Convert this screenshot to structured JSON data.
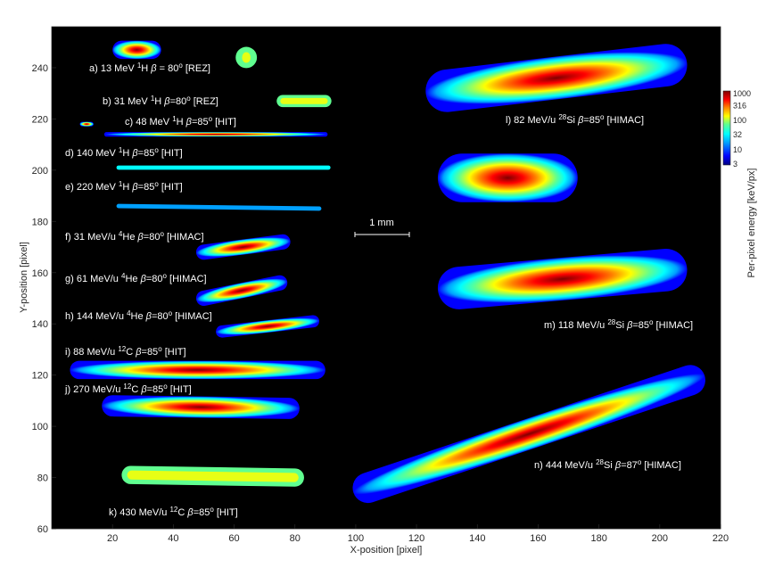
{
  "chart_data": {
    "type": "heatmap",
    "xlabel": "X-position [pixel]",
    "ylabel": "Y-position [pixel]",
    "xlim": [
      0,
      220
    ],
    "ylim": [
      60,
      256
    ],
    "xticks": [
      "20",
      "40",
      "60",
      "80",
      "100",
      "120",
      "140",
      "160",
      "180",
      "200",
      "220"
    ],
    "yticks": [
      "60",
      "80",
      "100",
      "120",
      "140",
      "160",
      "180",
      "200",
      "220",
      "240"
    ],
    "grid": false,
    "colorbar": {
      "label": "Per-pixel energy [keV/px]",
      "scale": "log",
      "range": [
        3,
        1000
      ],
      "ticks": [
        "1000",
        "316",
        "100",
        "32",
        "10",
        "3"
      ],
      "colormap": [
        "#00007f",
        "#0000ff",
        "#00a0ff",
        "#00ffff",
        "#60ff90",
        "#ffff00",
        "#ff8000",
        "#ff0000",
        "#7f0000"
      ]
    },
    "scale_bar": {
      "label": "1 mm",
      "length_px": 18
    },
    "series": [
      {
        "label": {
          "pre": "a) 13 MeV ",
          "iso": "1",
          "el": "H ",
          "beta": " = 80",
          "post": " [REZ]"
        }
      },
      {
        "label": {
          "pre": "b) 31 MeV ",
          "iso": "1",
          "el": "H ",
          "beta": "=80",
          "post": " [REZ]"
        }
      },
      {
        "label": {
          "pre": "c) 48 MeV ",
          "iso": "1",
          "el": "H ",
          "beta": "=85",
          "post": " [HIT]"
        }
      },
      {
        "label": {
          "pre": "d) 140 MeV ",
          "iso": "1",
          "el": "H ",
          "beta": "=85",
          "post": " [HIT]"
        }
      },
      {
        "label": {
          "pre": "e) 220 MeV ",
          "iso": "1",
          "el": "H ",
          "beta": "=85",
          "post": " [HIT]"
        }
      },
      {
        "label": {
          "pre": "f) 31 MeV/u ",
          "iso": "4",
          "el": "He ",
          "beta": "=80",
          "post": " [HIMAC]"
        }
      },
      {
        "label": {
          "pre": "g) 61 MeV/u ",
          "iso": "4",
          "el": "He ",
          "beta": "=80",
          "post": " [HIMAC]"
        }
      },
      {
        "label": {
          "pre": "h) 144 MeV/u ",
          "iso": "4",
          "el": "He ",
          "beta": "=80",
          "post": " [HIMAC]"
        }
      },
      {
        "label": {
          "pre": "i) 88 MeV/u ",
          "iso": "12",
          "el": "C ",
          "beta": "=85",
          "post": " [HIT]"
        }
      },
      {
        "label": {
          "pre": "j) 270 MeV/u ",
          "iso": "12",
          "el": "C ",
          "beta": "=85",
          "post": " [HIT]"
        }
      },
      {
        "label": {
          "pre": "k) 430 MeV/u ",
          "iso": "12",
          "el": "C ",
          "beta": "=85",
          "post": " [HIT]"
        }
      },
      {
        "label": {
          "pre": "l) 82 MeV/u ",
          "iso": "28",
          "el": "Si ",
          "beta": "=85",
          "post": " [HIMAC]"
        }
      },
      {
        "label": {
          "pre": "m) 118 MeV/u ",
          "iso": "28",
          "el": "Si ",
          "beta": "=85",
          "post": " [HIMAC]"
        }
      },
      {
        "label": {
          "pre": "n) 444 MeV/u ",
          "iso": "28",
          "el": "Si ",
          "beta": "=87",
          "post": " [HIMAC]"
        }
      }
    ],
    "tracks": [
      {
        "from": [
          23,
          247
        ],
        "to": [
          33,
          247
        ],
        "width": 6,
        "peak": 400
      },
      {
        "id": "blob",
        "from": [
          64,
          244
        ],
        "to": [
          64,
          244
        ],
        "width": 7,
        "peak": 60
      },
      {
        "from": [
          76,
          227
        ],
        "to": [
          90,
          227
        ],
        "width": 4,
        "peak": 80
      },
      {
        "from": [
          10,
          218
        ],
        "to": [
          13,
          218
        ],
        "width": 1.5,
        "peak": 300
      },
      {
        "from": [
          18,
          214
        ],
        "to": [
          90,
          214
        ],
        "width": 1.5,
        "peak": 300
      },
      {
        "from": [
          22,
          201
        ],
        "to": [
          91,
          201
        ],
        "width": 1.4,
        "peak": 20
      },
      {
        "from": [
          22,
          186
        ],
        "to": [
          88,
          185
        ],
        "width": 1.4,
        "peak": 12
      },
      {
        "from": [
          50,
          168
        ],
        "to": [
          76,
          172
        ],
        "width": 5,
        "peak": 500
      },
      {
        "from": [
          50,
          150
        ],
        "to": [
          75,
          156
        ],
        "width": 5,
        "peak": 500
      },
      {
        "from": [
          56,
          137
        ],
        "to": [
          86,
          141
        ],
        "width": 4,
        "peak": 100
      },
      {
        "from": [
          9,
          122
        ],
        "to": [
          87,
          122
        ],
        "width": 6,
        "peak": 1000
      },
      {
        "from": [
          20,
          108
        ],
        "to": [
          78,
          107
        ],
        "width": 7,
        "peak": 1000
      },
      {
        "from": [
          26,
          81
        ],
        "to": [
          80,
          80
        ],
        "width": 6,
        "peak": 50
      },
      {
        "from": [
          130,
          231
        ],
        "to": [
          202,
          241
        ],
        "width": 14,
        "peak": 1000
      },
      {
        "from": [
          135,
          197
        ],
        "to": [
          165,
          197
        ],
        "width": 16,
        "peak": 1000
      },
      {
        "from": [
          134,
          154
        ],
        "to": [
          202,
          161
        ],
        "width": 14,
        "peak": 1000
      },
      {
        "from": [
          104,
          76
        ],
        "to": [
          210,
          118
        ],
        "width": 10,
        "peak": 1000
      }
    ]
  }
}
